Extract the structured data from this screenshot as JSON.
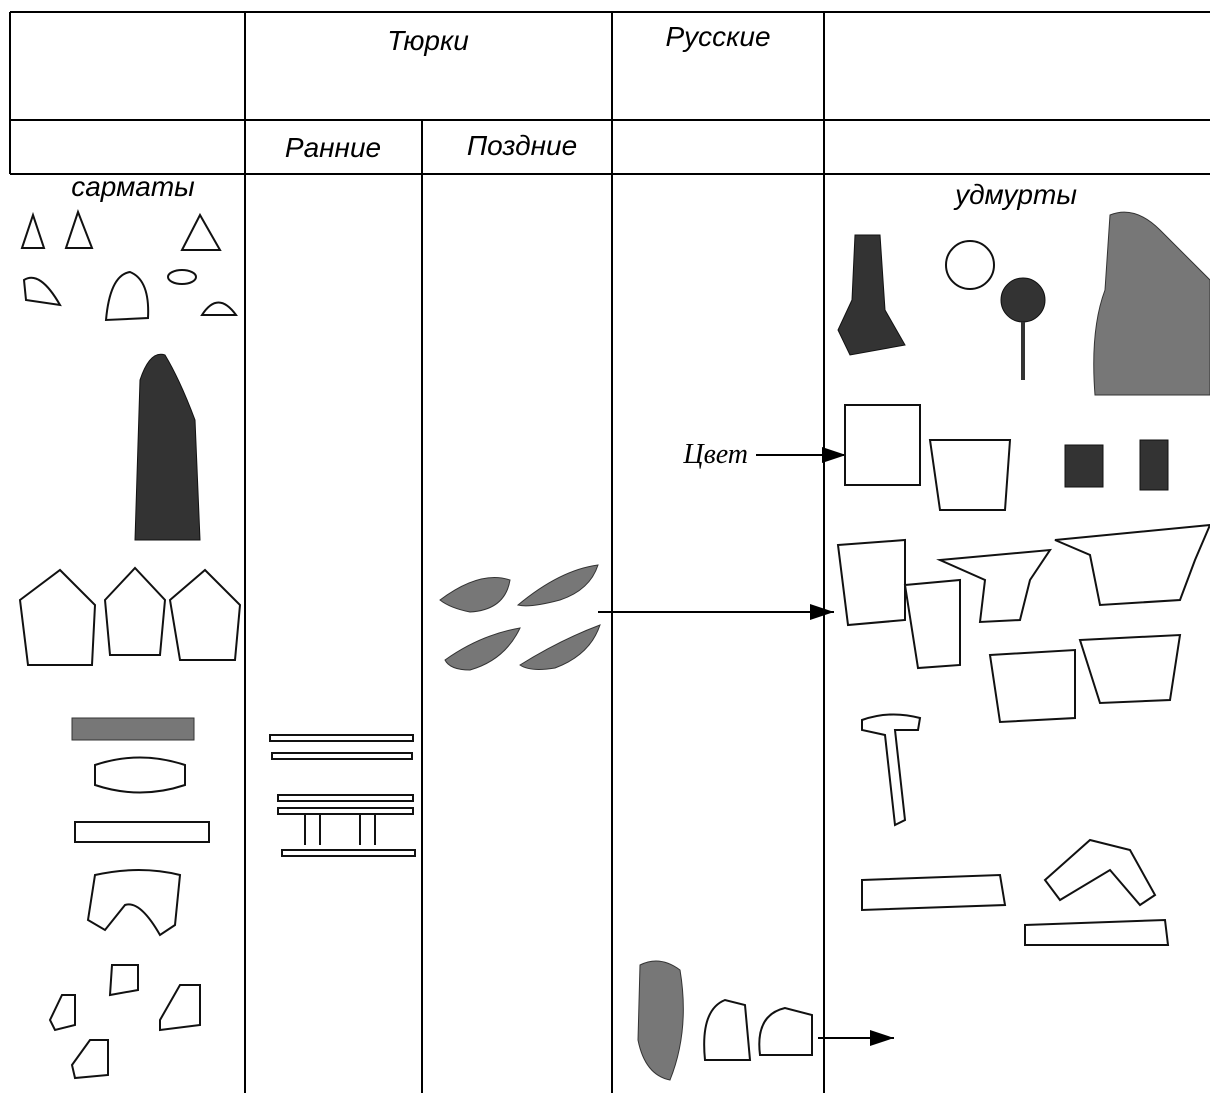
{
  "header": {
    "turks": "Тюрки",
    "russians": "Русские",
    "early": "Ранние",
    "late": "Поздние"
  },
  "columns": {
    "sarmatians": "сарматы",
    "udmurts": "удмурты"
  },
  "annotation": "Цвет"
}
